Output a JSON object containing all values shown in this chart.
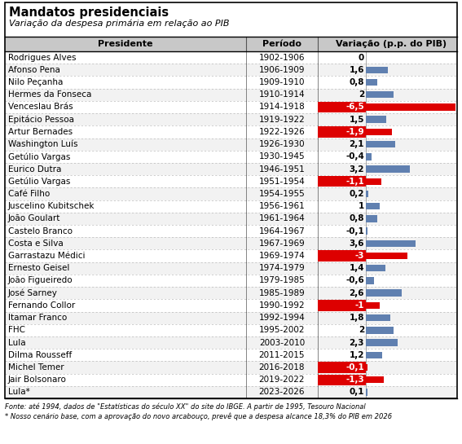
{
  "title": "Mandatos presidenciais",
  "subtitle": "Variação da despesa primária em relação ao PIB",
  "presidents": [
    "Rodrigues Alves",
    "Afonso Pena",
    "Nilo Peçanha",
    "Hermes da Fonseca",
    "Venceslau Brás",
    "Epitácio Pessoa",
    "Artur Bernades",
    "Washington Luís",
    "Getúlio Vargas",
    "Eurico Dutra",
    "Getúlio Vargas",
    "Café Filho",
    "Juscelino Kubitschek",
    "João Goulart",
    "Castelo Branco",
    "Costa e Silva",
    "Garrastazu Médici",
    "Ernesto Geisel",
    "João Figueiredo",
    "José Sarney",
    "Fernando Collor",
    "Itamar Franco",
    "FHC",
    "Lula",
    "Dilma Rousseff",
    "Michel Temer",
    "Jair Bolsonaro",
    "Lula*"
  ],
  "periods": [
    "1902-1906",
    "1906-1909",
    "1909-1910",
    "1910-1914",
    "1914-1918",
    "1919-1922",
    "1922-1926",
    "1926-1930",
    "1930-1945",
    "1946-1951",
    "1951-1954",
    "1954-1955",
    "1956-1961",
    "1961-1964",
    "1964-1967",
    "1967-1969",
    "1969-1974",
    "1974-1979",
    "1979-1985",
    "1985-1989",
    "1990-1992",
    "1992-1994",
    "1995-2002",
    "2003-2010",
    "2011-2015",
    "2016-2018",
    "2019-2022",
    "2023-2026"
  ],
  "values": [
    0,
    1.6,
    0.8,
    2,
    -6.5,
    1.5,
    -1.9,
    2.1,
    -0.4,
    3.2,
    -1.1,
    0.2,
    1,
    0.8,
    -0.1,
    3.6,
    -3,
    1.4,
    -0.6,
    2.6,
    -1,
    1.8,
    2,
    2.3,
    1.2,
    -0.1,
    -1.3,
    0.1
  ],
  "highlight_red": [
    4,
    6,
    10,
    16,
    20,
    25,
    26
  ],
  "bar_color_blue": "#6080B0",
  "bar_color_red": "#DD0000",
  "header_bg": "#C8C8C8",
  "row_bg_even": "#FFFFFF",
  "row_bg_odd": "#F2F2F2",
  "footnote1": "Fonte: até 1994, dados de \"Estatísticas do século XX\" do site do IBGE. A partir de 1995, Tesouro Nacional",
  "footnote2": "* Nosso cenário base, com a aprovação do novo arcabouço, prevê que a despesa alcance 18,3% do PIB em 2026",
  "outer_border_color": "#000000",
  "separator_color": "#AAAAAA",
  "col_sep_color": "#555555"
}
